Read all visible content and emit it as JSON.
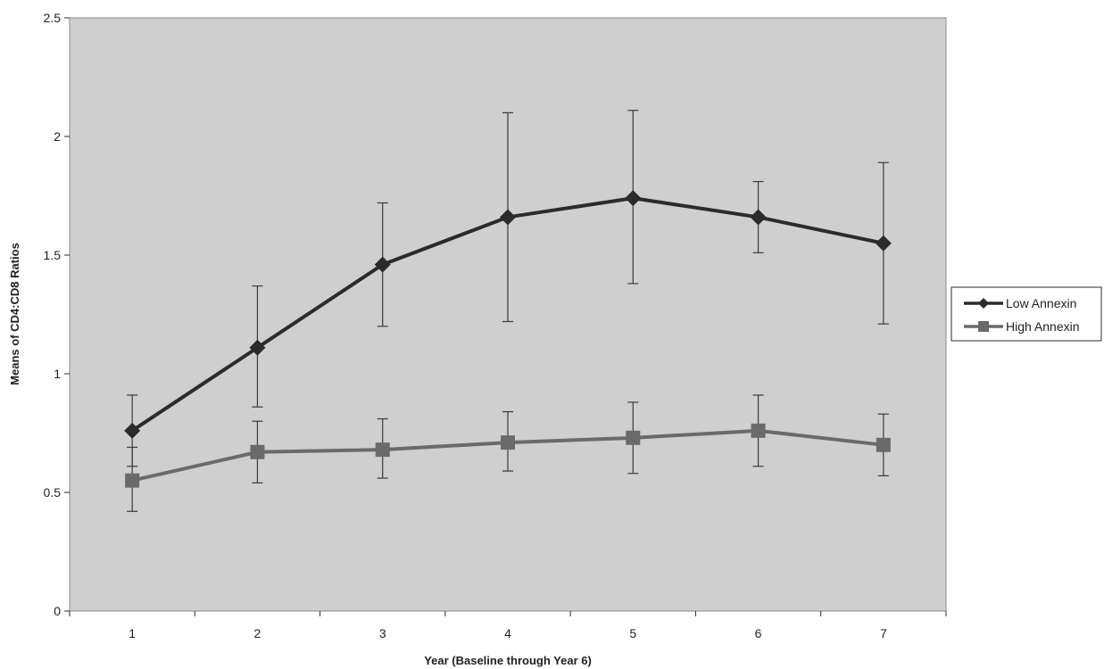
{
  "chart_data": {
    "type": "line",
    "title": "",
    "xlabel": "Year (Baseline through Year 6)",
    "ylabel": "Means of CD4:CD8 Ratios",
    "x": [
      1,
      2,
      3,
      4,
      5,
      6,
      7
    ],
    "x_tick_labels": [
      "1",
      "2",
      "3",
      "4",
      "5",
      "6",
      "7"
    ],
    "ylim": [
      0,
      2.5
    ],
    "y_ticks": [
      0,
      0.5,
      1,
      1.5,
      2,
      2.5
    ],
    "y_tick_labels": [
      "0",
      "0.5",
      "1",
      "1.5",
      "2",
      "2.5"
    ],
    "grid": false,
    "legend_position": "right",
    "plot_background": "#cfcfcf",
    "series": [
      {
        "name": "Low Annexin",
        "marker": "diamond",
        "color": "#2b2b2b",
        "values": [
          0.76,
          1.11,
          1.46,
          1.66,
          1.74,
          1.66,
          1.55
        ],
        "error_upper": [
          0.91,
          1.37,
          1.72,
          2.1,
          2.11,
          1.81,
          1.89
        ],
        "error_lower": [
          0.61,
          0.86,
          1.2,
          1.22,
          1.38,
          1.51,
          1.21
        ]
      },
      {
        "name": "High Annexin",
        "marker": "square",
        "color": "#6a6a6a",
        "values": [
          0.55,
          0.67,
          0.68,
          0.71,
          0.73,
          0.76,
          0.7
        ],
        "error_upper": [
          0.69,
          0.8,
          0.81,
          0.84,
          0.88,
          0.91,
          0.83
        ],
        "error_lower": [
          0.42,
          0.54,
          0.56,
          0.59,
          0.58,
          0.61,
          0.57
        ]
      }
    ]
  }
}
